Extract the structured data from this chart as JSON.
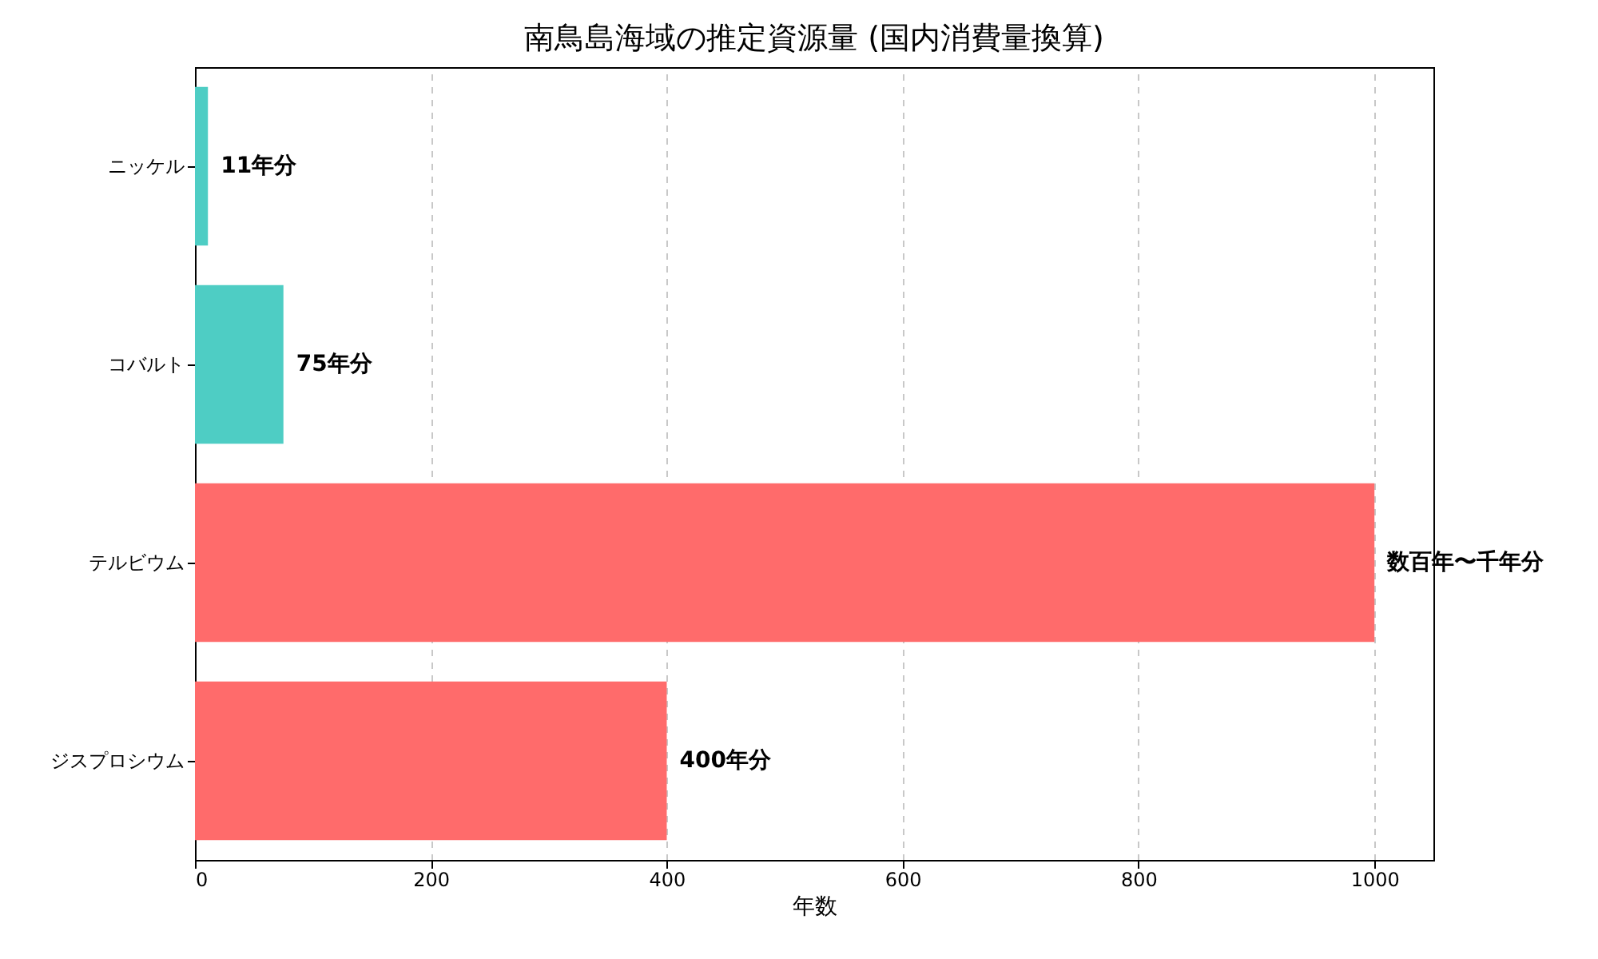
{
  "chart_data": {
    "type": "bar",
    "orientation": "horizontal",
    "title": "南鳥島海域の推定資源量 (国内消費量換算)",
    "xlabel": "年数",
    "categories": [
      "ニッケル",
      "コバルト",
      "テルビウム",
      "ジスプロシウム"
    ],
    "values": [
      11,
      75,
      1000,
      400
    ],
    "colors": [
      "#4ecdc4",
      "#4ecdc4",
      "#ff6b6b",
      "#ff6b6b"
    ],
    "value_labels": [
      "11年分",
      "75年分",
      "数百年〜千年分",
      "400年分"
    ],
    "xlim": [
      0,
      1050
    ],
    "xticks": [
      0,
      200,
      400,
      600,
      800,
      1000
    ],
    "grid": "x"
  }
}
